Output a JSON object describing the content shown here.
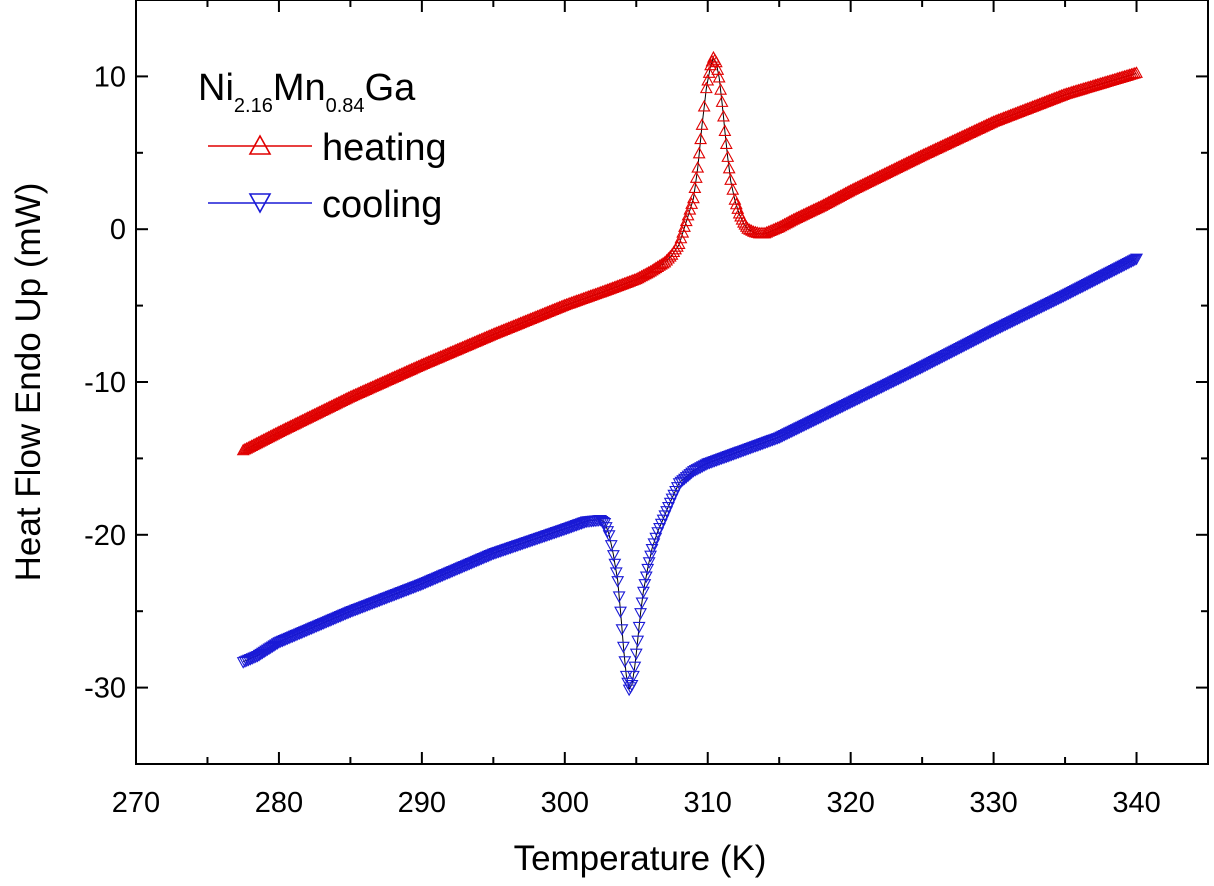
{
  "chart_data": {
    "type": "scatter",
    "xlabel": "Temperature (K)",
    "ylabel": "Heat Flow Endo Up (mW)",
    "xlim": [
      270,
      345
    ],
    "ylim": [
      -35,
      15
    ],
    "x_ticks": [
      "270",
      "280",
      "290",
      "300",
      "310",
      "320",
      "330",
      "340"
    ],
    "y_ticks": [
      "10",
      "0",
      "-10",
      "-20",
      "-30"
    ],
    "grid": false,
    "legend_position": "top-left",
    "legend_title": {
      "base1": "Ni",
      "sub1": "2.16",
      "base2": "Mn",
      "sub2": "0.84",
      "base3": "Ga"
    },
    "series": [
      {
        "name": "heating",
        "color": "#e00000",
        "marker": "triangle-up",
        "x": [
          277.5,
          280,
          285,
          290,
          295,
          300,
          303,
          305,
          306,
          307,
          307.5,
          308,
          308.5,
          309,
          309.3,
          309.6,
          309.9,
          310.2,
          310.4,
          310.6,
          310.8,
          311.0,
          311.2,
          311.4,
          311.6,
          311.9,
          312.2,
          312.5,
          312.8,
          313.2,
          313.6,
          314,
          315,
          316,
          318,
          320,
          325,
          330,
          335,
          340
        ],
        "y": [
          -14.5,
          -13.3,
          -11.0,
          -8.9,
          -6.9,
          -5.0,
          -4.0,
          -3.3,
          -2.8,
          -2.2,
          -1.7,
          -1.0,
          0.5,
          2.0,
          4.0,
          6.8,
          9.2,
          10.7,
          11.2,
          10.9,
          9.9,
          8.3,
          6.4,
          4.7,
          3.2,
          1.9,
          1.0,
          0.4,
          0.0,
          -0.2,
          -0.3,
          -0.3,
          0.1,
          0.6,
          1.5,
          2.5,
          4.8,
          7.0,
          8.8,
          10.2
        ]
      },
      {
        "name": "cooling",
        "color": "#1a1ad6",
        "marker": "triangle-down",
        "x": [
          277.5,
          278.5,
          280,
          285,
          290,
          295,
          300,
          301.5,
          302.5,
          302.8,
          303.1,
          303.4,
          303.7,
          303.9,
          304.1,
          304.3,
          304.5,
          304.7,
          304.9,
          305.1,
          305.3,
          305.5,
          305.8,
          306.1,
          306.5,
          307,
          307.5,
          308,
          309,
          310,
          315,
          320,
          325,
          330,
          335,
          340
        ],
        "y": [
          -28.3,
          -27.9,
          -27.0,
          -25.0,
          -23.2,
          -21.2,
          -19.6,
          -19.1,
          -19.0,
          -19.2,
          -20.0,
          -21.3,
          -23.0,
          -25.0,
          -27.3,
          -29.2,
          -30.1,
          -29.8,
          -28.6,
          -26.9,
          -25.1,
          -23.7,
          -22.2,
          -20.9,
          -19.8,
          -18.7,
          -17.6,
          -16.6,
          -15.8,
          -15.3,
          -13.6,
          -11.3,
          -9.0,
          -6.6,
          -4.3,
          -1.9
        ]
      }
    ]
  }
}
